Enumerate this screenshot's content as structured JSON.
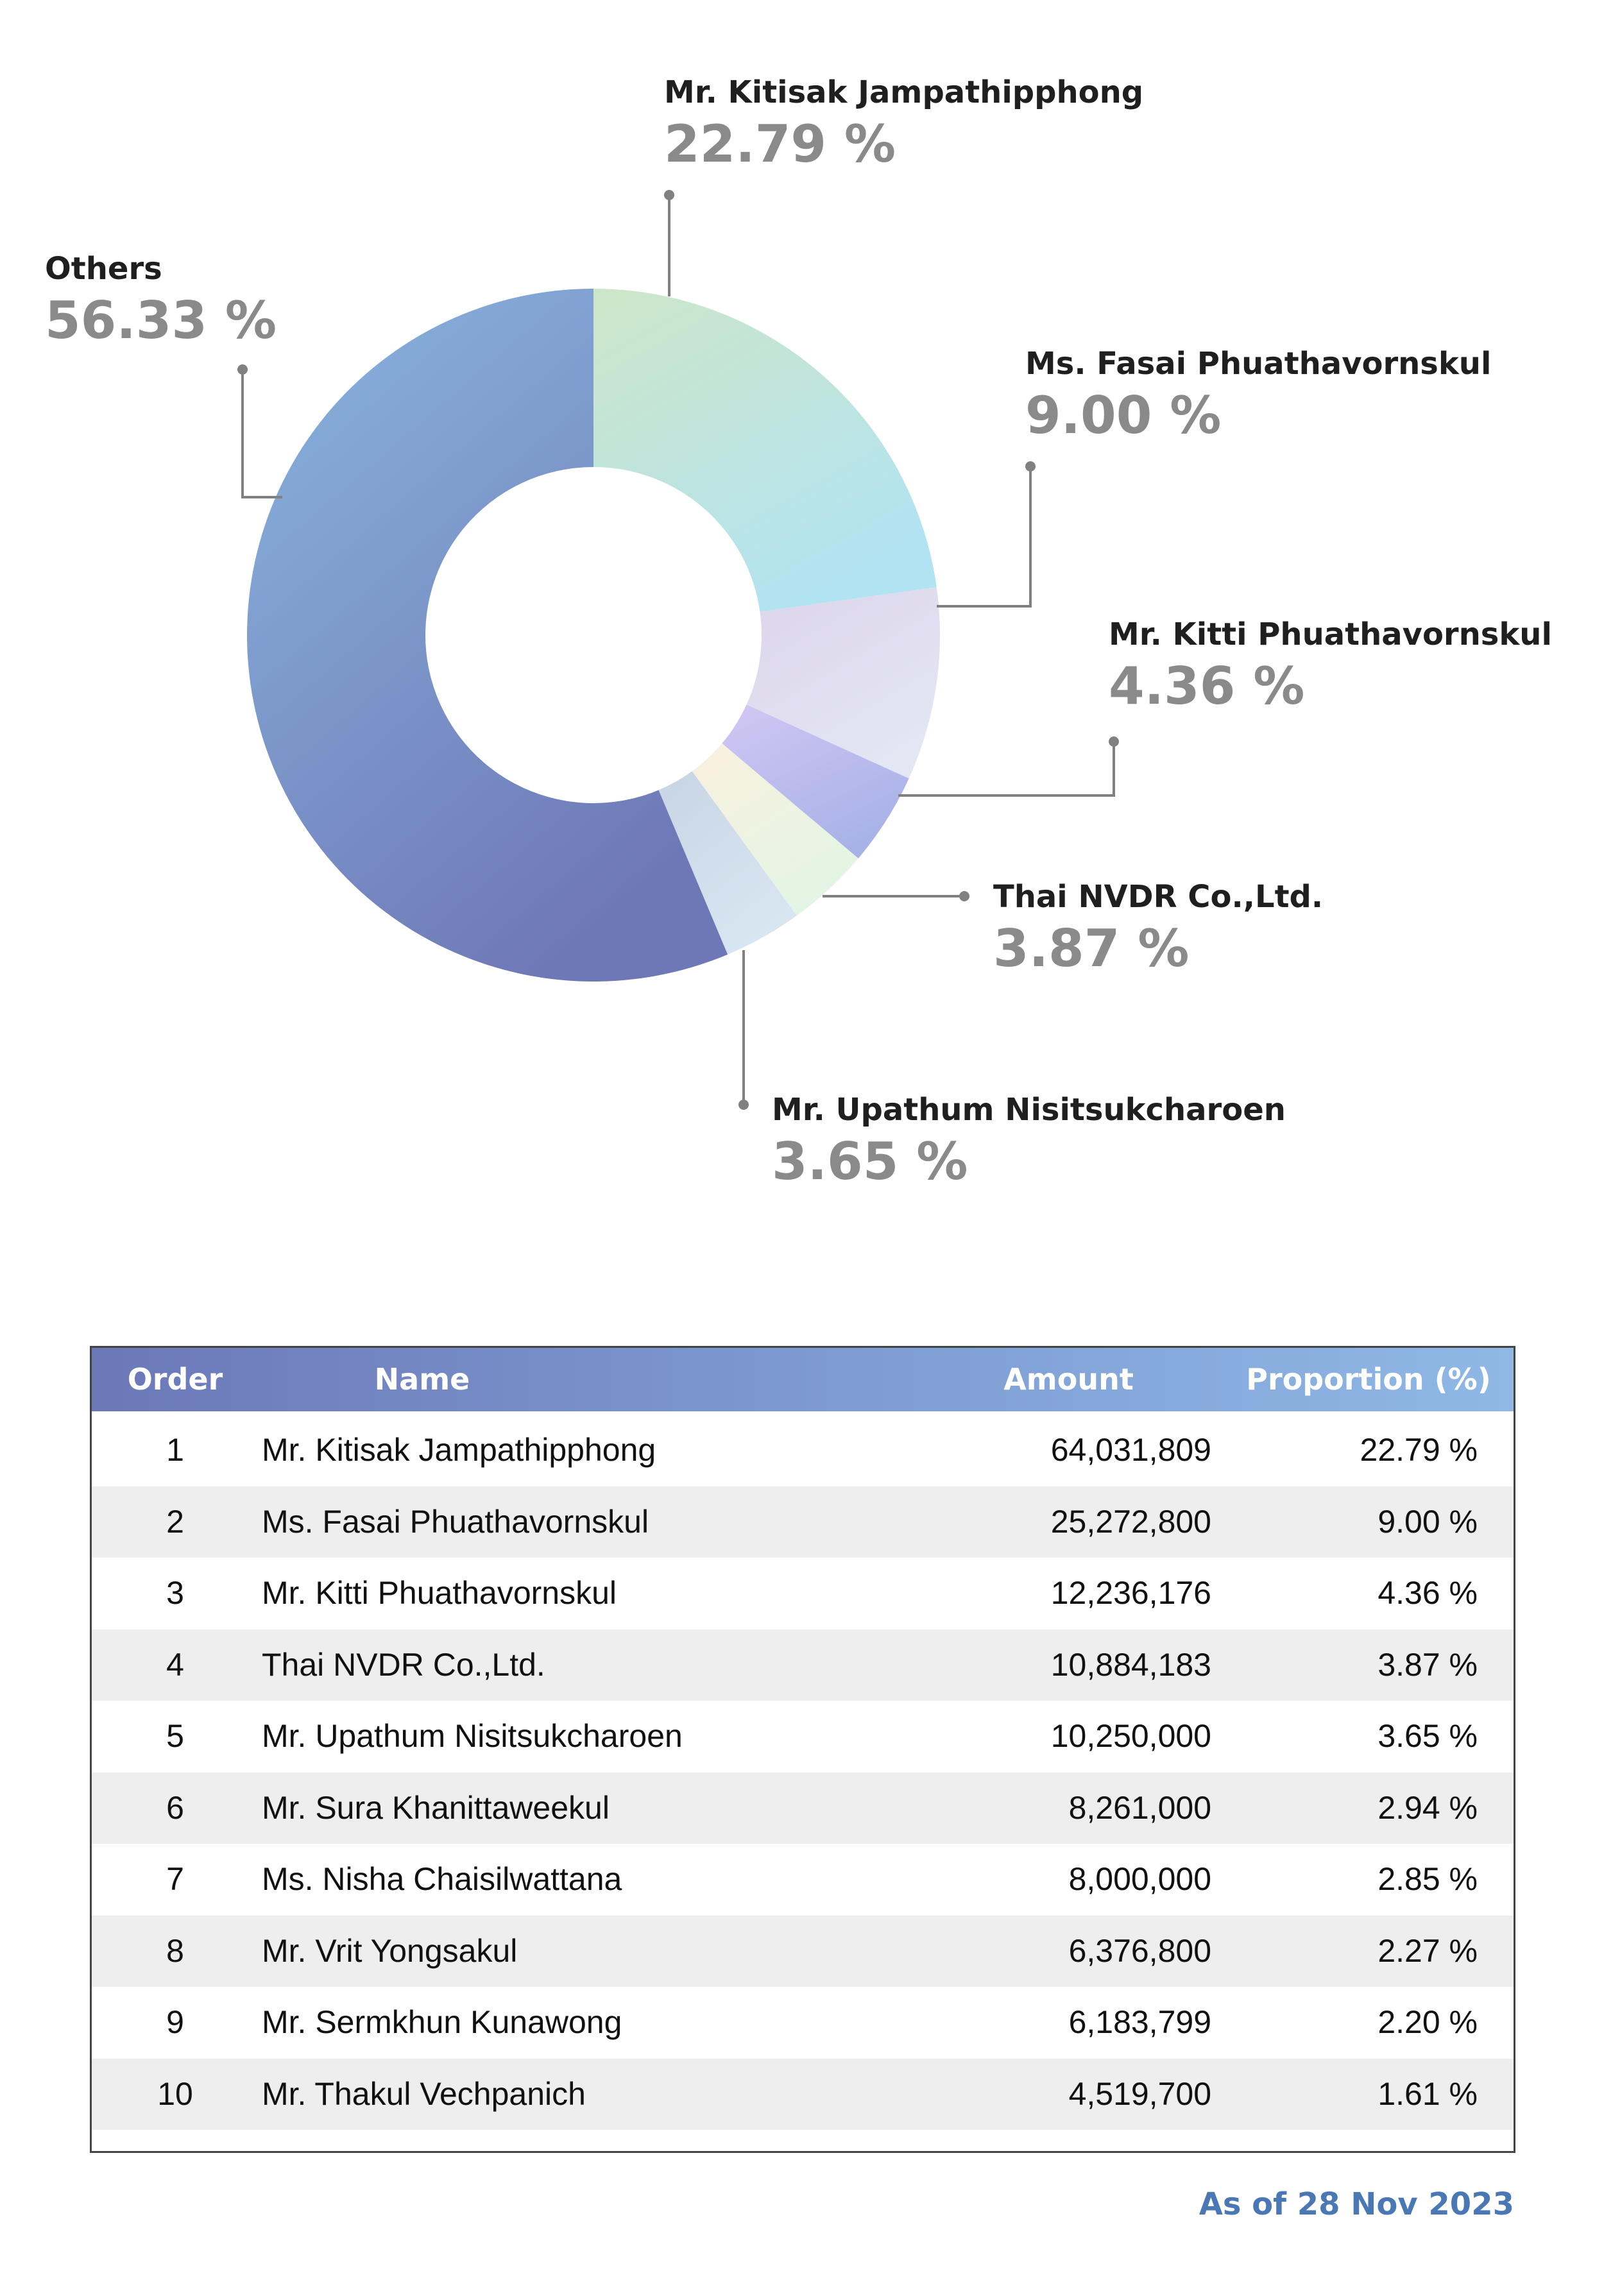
{
  "chart_data": {
    "type": "pie",
    "style": "donut",
    "slices": [
      {
        "label": "Mr. Kitisak Jampathipphong",
        "value": 22.79,
        "display": "22.79 %",
        "color_start": "#cde6c8",
        "color_end": "#b2e3f2"
      },
      {
        "label": "Ms. Fasai Phuathavornskul",
        "value": 9.0,
        "display": "9.00 %",
        "color_start": "#dcd4ea",
        "color_end": "#e4e6f4"
      },
      {
        "label": "Mr. Kitti Phuathavornskul",
        "value": 4.36,
        "display": "4.36 %",
        "color_start": "#d2c7f3",
        "color_end": "#a7b2e7"
      },
      {
        "label": "Thai NVDR Co.,Ltd.",
        "value": 3.87,
        "display": "3.87 %",
        "color_start": "#faf0de",
        "color_end": "#e3f5e5"
      },
      {
        "label": "Mr. Upathum Nisitsukcharoen",
        "value": 3.65,
        "display": "3.65 %",
        "color_start": "#c8d4e2",
        "color_end": "#d8e6f2"
      },
      {
        "label": "Others",
        "value": 56.33,
        "display": "56.33 %",
        "color_start": "#8ab6df",
        "color_end": "#6e78b6"
      }
    ],
    "leader_line_color": "#808080"
  },
  "table": {
    "headers": {
      "order": "Order",
      "name": "Name",
      "amount": "Amount",
      "proportion": "Proportion (%)"
    },
    "rows": [
      {
        "order": "1",
        "name": "Mr. Kitisak Jampathipphong",
        "amount": "64,031,809",
        "proportion": "22.79 %"
      },
      {
        "order": "2",
        "name": "Ms. Fasai Phuathavornskul",
        "amount": "25,272,800",
        "proportion": "9.00 %"
      },
      {
        "order": "3",
        "name": "Mr. Kitti Phuathavornskul",
        "amount": "12,236,176",
        "proportion": "4.36 %"
      },
      {
        "order": "4",
        "name": "Thai NVDR Co.,Ltd.",
        "amount": "10,884,183",
        "proportion": "3.87 %"
      },
      {
        "order": "5",
        "name": "Mr. Upathum Nisitsukcharoen",
        "amount": "10,250,000",
        "proportion": "3.65 %"
      },
      {
        "order": "6",
        "name": "Mr. Sura Khanittaweekul",
        "amount": "8,261,000",
        "proportion": "2.94 %"
      },
      {
        "order": "7",
        "name": "Ms. Nisha Chaisilwattana",
        "amount": "8,000,000",
        "proportion": "2.85 %"
      },
      {
        "order": "8",
        "name": "Mr. Vrit Yongsakul",
        "amount": "6,376,800",
        "proportion": "2.27 %"
      },
      {
        "order": "9",
        "name": "Mr. Sermkhun Kunawong",
        "amount": "6,183,799",
        "proportion": "2.20 %"
      },
      {
        "order": "10",
        "name": "Mr. Thakul Vechpanich",
        "amount": "4,519,700",
        "proportion": "1.61 %"
      }
    ]
  },
  "footer": {
    "as_of": "As of 28 Nov 2023"
  },
  "colors": {
    "header_gradient_start": "#6b78b8",
    "header_gradient_end": "#8fb8e5",
    "as_of_text": "#4a78b5",
    "row_alt": "#efeeef"
  }
}
